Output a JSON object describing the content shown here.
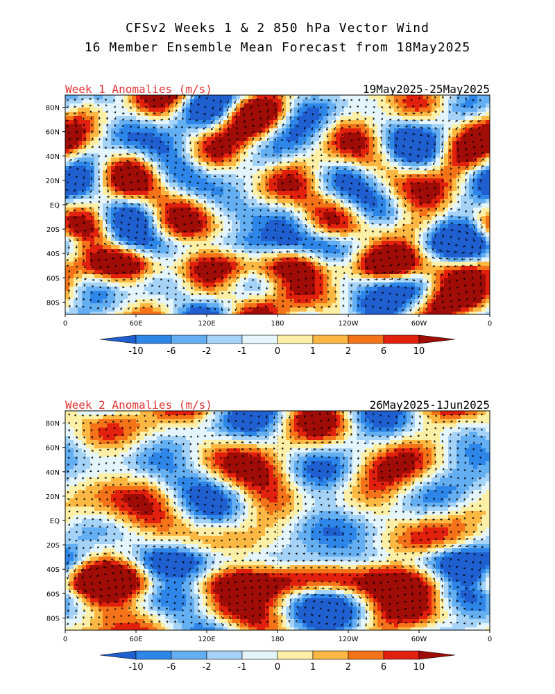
{
  "header": {
    "title_line1": "CFSv2 Weeks 1 & 2 850 hPa Vector Wind",
    "title_line2": "16 Member Ensemble Mean Forecast from 18May2025"
  },
  "axes": {
    "lat_labels": [
      "80N",
      "60N",
      "40N",
      "20N",
      "EQ",
      "20S",
      "40S",
      "60S",
      "80S"
    ],
    "lon_labels": [
      "0",
      "60E",
      "120E",
      "180",
      "120W",
      "60W",
      "0"
    ]
  },
  "colorbar": {
    "labels": [
      "-10",
      "-6",
      "-2",
      "-1",
      "0",
      "1",
      "2",
      "6",
      "10"
    ],
    "colors": [
      "#1f5fd0",
      "#2e86e8",
      "#64aef2",
      "#a5d2f7",
      "#e4f6fc",
      "#fdf0a6",
      "#fcb843",
      "#f57318",
      "#e1200e",
      "#a00c06"
    ]
  },
  "panels": [
    {
      "title": "Week 1 Anomalies (m/s)",
      "dates": "19May2025-25May2025"
    },
    {
      "title": "Week 2 Anomalies (m/s)",
      "dates": "26May2025-1Jun2025"
    }
  ]
}
